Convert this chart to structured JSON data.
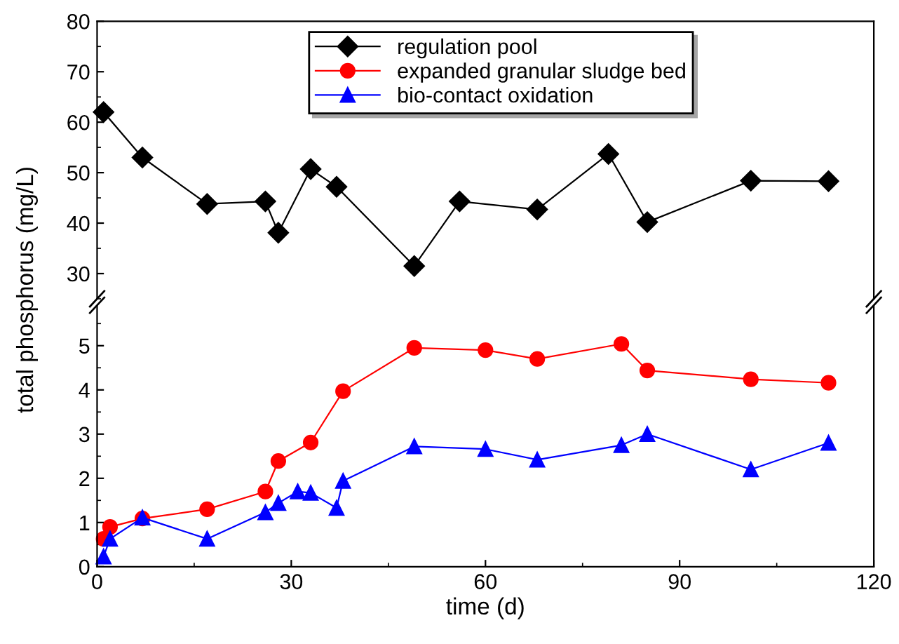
{
  "chart_data": [
    {
      "type": "line",
      "ylabel": "total phosphorus (mg/L)",
      "xlim": [
        0,
        120
      ],
      "ylim": [
        25,
        80
      ],
      "yticks": [
        30,
        40,
        50,
        60,
        70,
        80
      ],
      "tick_labels": "y",
      "grid": false,
      "legend": "top",
      "line_style": "solid",
      "series": [
        {
          "name": "regulation pool",
          "color": "#000000",
          "marker": "diamond",
          "x": [
            1,
            7,
            17,
            26,
            28,
            33,
            37,
            49,
            56,
            68,
            79,
            85,
            101,
            113
          ],
          "values": [
            62,
            53,
            43.8,
            44.3,
            38.1,
            50.7,
            47.2,
            31.5,
            44.3,
            42.7,
            53.7,
            40.2,
            48.4,
            48.3
          ]
        }
      ]
    },
    {
      "type": "line",
      "xlabel": "time (d)",
      "xlim": [
        0,
        120
      ],
      "xticks": [
        0,
        30,
        60,
        90,
        120
      ],
      "ylim": [
        0,
        5.9
      ],
      "yticks": [
        0,
        1,
        2,
        3,
        4,
        5
      ],
      "grid": false,
      "legend": "top",
      "line_style": "solid",
      "series": [
        {
          "name": "expanded granular sludge bed",
          "color": "#ff0000",
          "marker": "circle",
          "x": [
            1,
            2,
            7,
            17,
            26,
            28,
            33,
            38,
            49,
            60,
            68,
            81,
            85,
            101,
            113
          ],
          "values": [
            0.63,
            0.9,
            1.09,
            1.3,
            1.7,
            2.39,
            2.81,
            3.97,
            4.95,
            4.9,
            4.7,
            5.04,
            4.44,
            4.24,
            4.16
          ]
        },
        {
          "name": "bio-contact oxidation",
          "color": "#0000ff",
          "marker": "triangle",
          "x": [
            1,
            2,
            7,
            17,
            26,
            28,
            31,
            33,
            37,
            38,
            49,
            60,
            68,
            81,
            85,
            101,
            113
          ],
          "values": [
            0.23,
            0.63,
            1.11,
            0.63,
            1.23,
            1.44,
            1.7,
            1.67,
            1.33,
            1.94,
            2.72,
            2.66,
            2.42,
            2.75,
            3.0,
            2.2,
            2.8
          ]
        }
      ]
    }
  ]
}
